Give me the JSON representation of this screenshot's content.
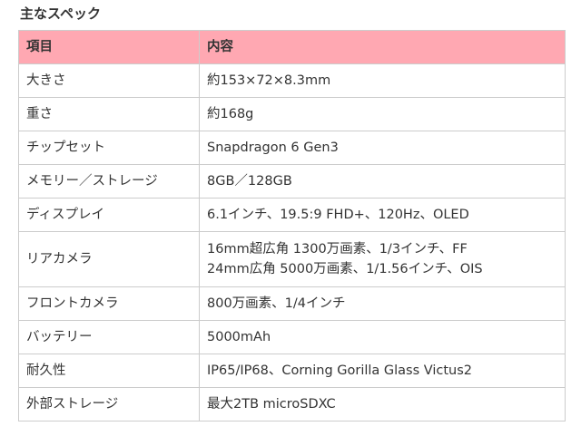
{
  "title": "主なスペック",
  "header_color": "#ffa8b2",
  "columns": [
    "項目",
    "内容"
  ],
  "rows": [
    {
      "label": "大きさ",
      "value": [
        "約153×72×8.3mm"
      ]
    },
    {
      "label": "重さ",
      "value": [
        "約168g"
      ]
    },
    {
      "label": "チップセット",
      "value": [
        "Snapdragon 6 Gen3"
      ]
    },
    {
      "label": "メモリー／ストレージ",
      "value": [
        "8GB／128GB"
      ]
    },
    {
      "label": "ディスプレイ",
      "value": [
        "6.1インチ、19.5:9 FHD+、120Hz、OLED"
      ]
    },
    {
      "label": "リアカメラ",
      "value": [
        "16mm超広角 1300万画素、1/3インチ、FF",
        "24mm広角 5000万画素、1/1.56インチ、OIS"
      ]
    },
    {
      "label": "フロントカメラ",
      "value": [
        "800万画素、1/4インチ"
      ]
    },
    {
      "label": "バッテリー",
      "value": [
        "5000mAh"
      ]
    },
    {
      "label": "耐久性",
      "value": [
        "IP65/IP68、Corning Gorilla Glass Victus2"
      ]
    },
    {
      "label": "外部ストレージ",
      "value": [
        "最大2TB microSDXC"
      ]
    }
  ]
}
